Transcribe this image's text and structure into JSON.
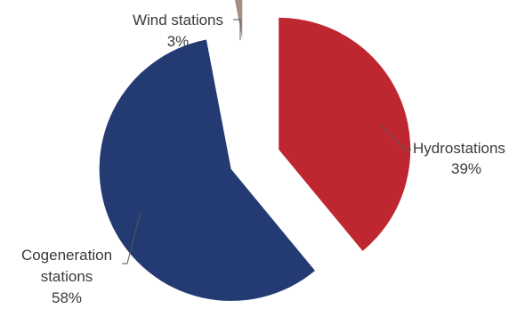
{
  "chart_data": {
    "type": "pie",
    "title": "",
    "exploded": true,
    "slices": [
      {
        "name": "Hydrostations",
        "value": 39,
        "value_label": "39%",
        "color": "#bf2730"
      },
      {
        "name": "Cogeneration stations",
        "value": 58,
        "value_label": "58%",
        "color": "#243a73"
      },
      {
        "name": "Wind stations",
        "value": 3,
        "value_label": "3%",
        "color": "#a48f86"
      }
    ],
    "labels": {
      "hydro": {
        "line1": "Hydrostations",
        "line2": "39%"
      },
      "cogen": {
        "line1": "Cogeneration",
        "line2": "stations",
        "line3": "58%"
      },
      "wind": {
        "line1": "Wind stations",
        "line2": "3%"
      }
    }
  }
}
